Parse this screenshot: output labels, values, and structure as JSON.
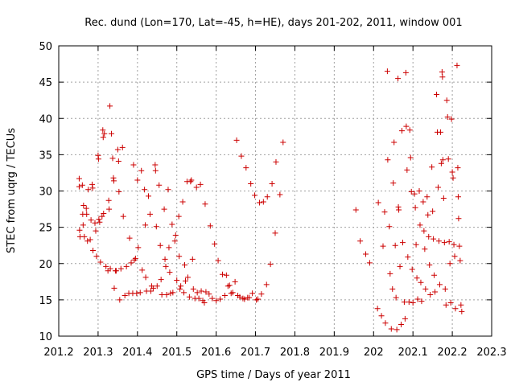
{
  "chart_data": {
    "type": "scatter",
    "title": "Rec. dund (Lon=170, Lat=-45, h=HE), days 201-202, 2011, window 001",
    "xlabel": "GPS time / Days of year 2011",
    "ylabel": "STEC from uqrg / TECUs",
    "xlim": [
      201.2,
      202.3
    ],
    "ylim": [
      10,
      50
    ],
    "xticks": [
      "201.2",
      "201.3",
      "201.4",
      "201.5",
      "201.6",
      "201.7",
      "201.8",
      "201.9",
      "202",
      "202.1",
      "202.2",
      "202.3"
    ],
    "yticks": [
      "10",
      "15",
      "20",
      "25",
      "30",
      "35",
      "40",
      "45",
      "50"
    ],
    "grid": true,
    "marker": "plus",
    "marker_color": "#cc0000",
    "points": [
      [
        201.252,
        31.7
      ],
      [
        201.252,
        30.6
      ],
      [
        201.253,
        24.6
      ],
      [
        201.254,
        23.7
      ],
      [
        201.26,
        30.8
      ],
      [
        201.261,
        26.8
      ],
      [
        201.262,
        25.3
      ],
      [
        201.263,
        28.0
      ],
      [
        201.265,
        23.7
      ],
      [
        201.27,
        27.6
      ],
      [
        201.271,
        26.8
      ],
      [
        201.273,
        23.1
      ],
      [
        201.275,
        30.2
      ],
      [
        201.28,
        23.3
      ],
      [
        201.282,
        26.0
      ],
      [
        201.285,
        30.9
      ],
      [
        201.286,
        30.4
      ],
      [
        201.287,
        21.8
      ],
      [
        201.292,
        25.6
      ],
      [
        201.294,
        24.5
      ],
      [
        201.296,
        21.0
      ],
      [
        201.3,
        34.9
      ],
      [
        201.301,
        34.4
      ],
      [
        201.302,
        26.1
      ],
      [
        201.304,
        25.7
      ],
      [
        201.306,
        20.2
      ],
      [
        201.31,
        26.5
      ],
      [
        201.312,
        38.4
      ],
      [
        201.313,
        37.4
      ],
      [
        201.314,
        26.9
      ],
      [
        201.316,
        37.9
      ],
      [
        201.32,
        19.6
      ],
      [
        201.325,
        19.0
      ],
      [
        201.327,
        28.7
      ],
      [
        201.328,
        27.5
      ],
      [
        201.33,
        41.7
      ],
      [
        201.331,
        19.3
      ],
      [
        201.334,
        37.9
      ],
      [
        201.337,
        34.5
      ],
      [
        201.339,
        31.8
      ],
      [
        201.34,
        31.4
      ],
      [
        201.341,
        16.6
      ],
      [
        201.344,
        19.0
      ],
      [
        201.346,
        19.0
      ],
      [
        201.35,
        35.7
      ],
      [
        201.352,
        34.1
      ],
      [
        201.353,
        29.9
      ],
      [
        201.355,
        15.0
      ],
      [
        201.358,
        19.3
      ],
      [
        201.362,
        36.0
      ],
      [
        201.364,
        26.5
      ],
      [
        201.368,
        15.6
      ],
      [
        201.372,
        19.6
      ],
      [
        201.378,
        15.9
      ],
      [
        201.38,
        23.5
      ],
      [
        201.384,
        20.1
      ],
      [
        201.388,
        15.9
      ],
      [
        201.39,
        33.6
      ],
      [
        201.392,
        20.5
      ],
      [
        201.395,
        20.7
      ],
      [
        201.398,
        15.9
      ],
      [
        201.4,
        31.5
      ],
      [
        201.402,
        22.2
      ],
      [
        201.407,
        16.0
      ],
      [
        201.41,
        32.8
      ],
      [
        201.412,
        19.1
      ],
      [
        201.418,
        30.2
      ],
      [
        201.42,
        25.3
      ],
      [
        201.421,
        18.1
      ],
      [
        201.423,
        16.2
      ],
      [
        201.428,
        29.3
      ],
      [
        201.432,
        26.8
      ],
      [
        201.434,
        16.2
      ],
      [
        201.436,
        16.9
      ],
      [
        201.44,
        16.6
      ],
      [
        201.445,
        33.6
      ],
      [
        201.446,
        32.8
      ],
      [
        201.448,
        25.1
      ],
      [
        201.45,
        16.9
      ],
      [
        201.455,
        30.8
      ],
      [
        201.458,
        22.5
      ],
      [
        201.46,
        17.8
      ],
      [
        201.462,
        15.7
      ],
      [
        201.468,
        27.5
      ],
      [
        201.47,
        20.6
      ],
      [
        201.472,
        19.6
      ],
      [
        201.474,
        15.7
      ],
      [
        201.478,
        30.2
      ],
      [
        201.48,
        22.2
      ],
      [
        201.482,
        18.8
      ],
      [
        201.484,
        15.9
      ],
      [
        201.488,
        25.4
      ],
      [
        201.49,
        16.0
      ],
      [
        201.495,
        23.1
      ],
      [
        201.497,
        23.9
      ],
      [
        201.5,
        17.7
      ],
      [
        201.505,
        26.5
      ],
      [
        201.506,
        21.0
      ],
      [
        201.508,
        16.5
      ],
      [
        201.51,
        16.9
      ],
      [
        201.515,
        28.5
      ],
      [
        201.518,
        16.0
      ],
      [
        201.52,
        19.8
      ],
      [
        201.522,
        17.6
      ],
      [
        201.526,
        31.3
      ],
      [
        201.528,
        18.1
      ],
      [
        201.532,
        15.4
      ],
      [
        201.535,
        31.3
      ],
      [
        201.537,
        31.5
      ],
      [
        201.54,
        20.6
      ],
      [
        201.542,
        16.5
      ],
      [
        201.546,
        15.2
      ],
      [
        201.55,
        30.5
      ],
      [
        201.552,
        16.0
      ],
      [
        201.556,
        15.2
      ],
      [
        201.56,
        30.9
      ],
      [
        201.562,
        16.2
      ],
      [
        201.566,
        14.9
      ],
      [
        201.57,
        14.6
      ],
      [
        201.572,
        28.2
      ],
      [
        201.574,
        16.1
      ],
      [
        201.582,
        15.8
      ],
      [
        201.585,
        25.2
      ],
      [
        201.59,
        15.2
      ],
      [
        201.596,
        22.7
      ],
      [
        201.6,
        14.9
      ],
      [
        201.605,
        20.4
      ],
      [
        201.61,
        15.1
      ],
      [
        201.616,
        18.5
      ],
      [
        201.622,
        15.6
      ],
      [
        201.626,
        18.4
      ],
      [
        201.63,
        16.9
      ],
      [
        201.634,
        17.0
      ],
      [
        201.638,
        15.9
      ],
      [
        201.642,
        16.0
      ],
      [
        201.648,
        17.5
      ],
      [
        201.652,
        37.0
      ],
      [
        201.655,
        15.6
      ],
      [
        201.66,
        15.4
      ],
      [
        201.664,
        34.8
      ],
      [
        201.668,
        15.2
      ],
      [
        201.672,
        15.1
      ],
      [
        201.676,
        33.2
      ],
      [
        201.68,
        15.3
      ],
      [
        201.684,
        15.3
      ],
      [
        201.688,
        31.0
      ],
      [
        201.692,
        15.9
      ],
      [
        201.698,
        29.4
      ],
      [
        201.702,
        15.0
      ],
      [
        201.706,
        15.1
      ],
      [
        201.71,
        28.4
      ],
      [
        201.715,
        15.8
      ],
      [
        201.72,
        28.5
      ],
      [
        201.728,
        17.1
      ],
      [
        201.73,
        29.2
      ],
      [
        201.738,
        19.9
      ],
      [
        201.742,
        31.0
      ],
      [
        201.75,
        24.2
      ],
      [
        201.752,
        34.0
      ],
      [
        201.762,
        29.5
      ],
      [
        201.77,
        36.7
      ],
      [
        201.955,
        27.4
      ],
      [
        201.966,
        23.1
      ],
      [
        201.98,
        21.3
      ],
      [
        201.99,
        20.1
      ],
      [
        202.01,
        13.8
      ],
      [
        202.012,
        28.4
      ],
      [
        202.02,
        12.8
      ],
      [
        202.024,
        22.4
      ],
      [
        202.028,
        27.1
      ],
      [
        202.03,
        11.8
      ],
      [
        202.035,
        46.5
      ],
      [
        202.036,
        34.3
      ],
      [
        202.04,
        25.1
      ],
      [
        202.042,
        18.6
      ],
      [
        202.045,
        11.0
      ],
      [
        202.048,
        16.5
      ],
      [
        202.05,
        31.1
      ],
      [
        202.052,
        36.7
      ],
      [
        202.055,
        22.5
      ],
      [
        202.057,
        15.3
      ],
      [
        202.059,
        10.9
      ],
      [
        202.062,
        45.5
      ],
      [
        202.063,
        27.8
      ],
      [
        202.064,
        27.4
      ],
      [
        202.067,
        19.6
      ],
      [
        202.07,
        11.6
      ],
      [
        202.072,
        38.3
      ],
      [
        202.074,
        22.9
      ],
      [
        202.078,
        14.7
      ],
      [
        202.08,
        12.4
      ],
      [
        202.082,
        46.3
      ],
      [
        202.083,
        38.9
      ],
      [
        202.085,
        32.9
      ],
      [
        202.087,
        20.9
      ],
      [
        202.09,
        14.7
      ],
      [
        202.092,
        38.4
      ],
      [
        202.094,
        34.6
      ],
      [
        202.096,
        29.9
      ],
      [
        202.098,
        19.2
      ],
      [
        202.1,
        14.6
      ],
      [
        202.104,
        29.6
      ],
      [
        202.106,
        27.7
      ],
      [
        202.108,
        22.6
      ],
      [
        202.11,
        18.0
      ],
      [
        202.112,
        15.1
      ],
      [
        202.116,
        30.0
      ],
      [
        202.118,
        25.3
      ],
      [
        202.12,
        17.4
      ],
      [
        202.122,
        14.8
      ],
      [
        202.126,
        28.5
      ],
      [
        202.128,
        24.5
      ],
      [
        202.13,
        22.0
      ],
      [
        202.132,
        16.5
      ],
      [
        202.136,
        29.2
      ],
      [
        202.138,
        26.7
      ],
      [
        202.14,
        23.7
      ],
      [
        202.142,
        19.8
      ],
      [
        202.144,
        15.7
      ],
      [
        202.148,
        33.3
      ],
      [
        202.15,
        27.2
      ],
      [
        202.152,
        23.4
      ],
      [
        202.154,
        18.4
      ],
      [
        202.156,
        16.1
      ],
      [
        202.16,
        43.3
      ],
      [
        202.162,
        38.1
      ],
      [
        202.164,
        30.5
      ],
      [
        202.166,
        23.1
      ],
      [
        202.168,
        17.1
      ],
      [
        202.17,
        38.1
      ],
      [
        202.172,
        33.8
      ],
      [
        202.174,
        46.4
      ],
      [
        202.175,
        45.7
      ],
      [
        202.176,
        34.3
      ],
      [
        202.178,
        29.0
      ],
      [
        202.18,
        22.9
      ],
      [
        202.182,
        16.5
      ],
      [
        202.184,
        14.3
      ],
      [
        202.186,
        42.5
      ],
      [
        202.188,
        40.2
      ],
      [
        202.19,
        34.4
      ],
      [
        202.192,
        23.0
      ],
      [
        202.194,
        20.0
      ],
      [
        202.196,
        14.6
      ],
      [
        202.198,
        39.9
      ],
      [
        202.2,
        32.6
      ],
      [
        202.202,
        31.8
      ],
      [
        202.204,
        22.6
      ],
      [
        202.206,
        21.0
      ],
      [
        202.208,
        13.8
      ],
      [
        202.212,
        47.3
      ],
      [
        202.214,
        33.2
      ],
      [
        202.215,
        29.2
      ],
      [
        202.216,
        26.2
      ],
      [
        202.218,
        22.4
      ],
      [
        202.22,
        20.4
      ],
      [
        202.222,
        14.3
      ],
      [
        202.224,
        13.4
      ]
    ]
  }
}
